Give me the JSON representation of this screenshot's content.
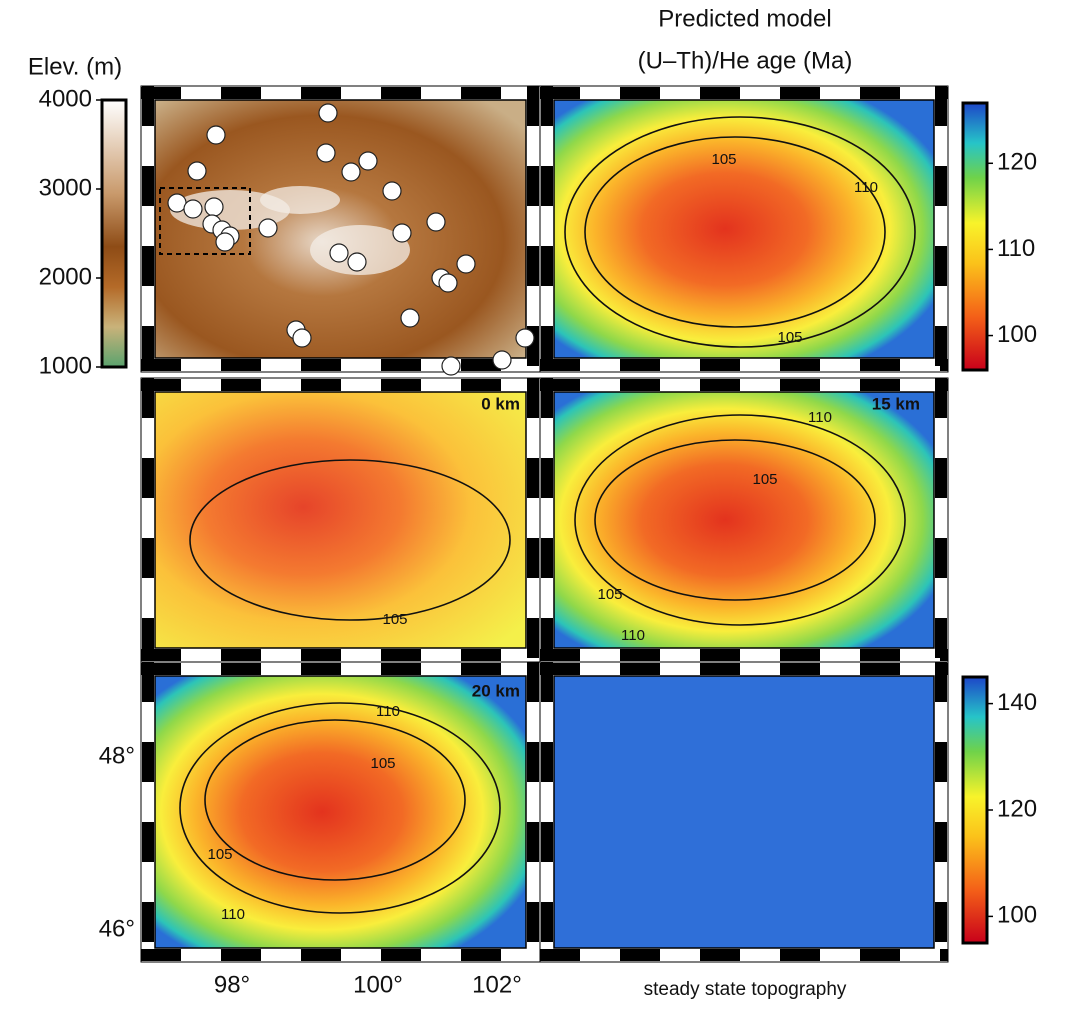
{
  "title_lines": [
    "Predicted model",
    "(U–Th)/He age (Ma)"
  ],
  "elevation_colorbar": {
    "title": "Elev. (m)",
    "lim": [
      1000,
      4000
    ],
    "ticks": [
      1000,
      2000,
      3000,
      4000
    ]
  },
  "age_colorbar_top": {
    "lim": [
      96,
      127
    ],
    "ticks": [
      100,
      110,
      120
    ]
  },
  "age_colorbar_bottom": {
    "lim": [
      95,
      145
    ],
    "ticks": [
      100,
      120,
      140
    ]
  },
  "top_right_contour_labels": [
    "105",
    "110",
    "105"
  ],
  "panels": [
    {
      "label": "0 km",
      "contour_labels": [
        "105"
      ]
    },
    {
      "label": "15 km",
      "contour_labels": [
        "110",
        "105",
        "105",
        "110"
      ]
    },
    {
      "label": "20 km",
      "contour_labels": [
        "110",
        "105",
        "105",
        "110"
      ]
    }
  ],
  "latitude_labels": [
    "48°",
    "46°"
  ],
  "longitude_labels": [
    "98°",
    "100°",
    "102°"
  ],
  "footer": "steady state topography"
}
